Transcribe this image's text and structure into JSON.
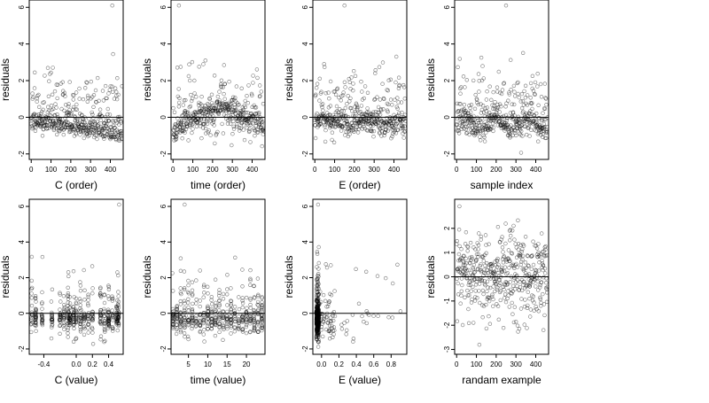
{
  "chart_data": [
    {
      "type": "scatter",
      "xlabel": "C (order)",
      "ylabel": "residuals",
      "xlim": [
        -10,
        465
      ],
      "ylim": [
        -2.3,
        6.4
      ],
      "xticks": [
        0,
        100,
        200,
        300,
        400
      ],
      "xtick_labels": [
        "0",
        "100",
        "200",
        "300",
        "400"
      ],
      "yticks": [
        -2,
        0,
        2,
        4,
        6
      ],
      "ytick_labels": [
        "-2",
        "0",
        "2",
        "4",
        "6"
      ],
      "hline": 0,
      "n_points": 460,
      "pattern": "C_order",
      "seed": 11,
      "max_point": [
        410,
        6.1
      ]
    },
    {
      "type": "scatter",
      "xlabel": "time (order)",
      "ylabel": "residuals",
      "xlim": [
        -10,
        465
      ],
      "ylim": [
        -2.3,
        6.4
      ],
      "xticks": [
        0,
        100,
        200,
        300,
        400
      ],
      "xtick_labels": [
        "0",
        "100",
        "200",
        "300",
        "400"
      ],
      "yticks": [
        -2,
        0,
        2,
        4,
        6
      ],
      "ytick_labels": [
        "-2",
        "0",
        "2",
        "4",
        "6"
      ],
      "hline": 0,
      "n_points": 460,
      "pattern": "time_order",
      "seed": 23,
      "max_point": [
        30,
        6.1
      ]
    },
    {
      "type": "scatter",
      "xlabel": "E (order)",
      "ylabel": "residuals",
      "xlim": [
        -10,
        465
      ],
      "ylim": [
        -2.3,
        6.4
      ],
      "xticks": [
        0,
        100,
        200,
        300,
        400
      ],
      "xtick_labels": [
        "0",
        "100",
        "200",
        "300",
        "400"
      ],
      "yticks": [
        -2,
        0,
        2,
        4,
        6
      ],
      "ytick_labels": [
        "-2",
        "0",
        "2",
        "4",
        "6"
      ],
      "hline": 0,
      "n_points": 460,
      "pattern": "E_order",
      "seed": 37,
      "max_point": [
        150,
        6.1
      ]
    },
    {
      "type": "scatter",
      "xlabel": "sample index",
      "ylabel": "residuals",
      "xlim": [
        -10,
        465
      ],
      "ylim": [
        -2.3,
        6.4
      ],
      "xticks": [
        0,
        100,
        200,
        300,
        400
      ],
      "xtick_labels": [
        "0",
        "100",
        "200",
        "300",
        "400"
      ],
      "yticks": [
        -2,
        0,
        2,
        4,
        6
      ],
      "ytick_labels": [
        "-2",
        "0",
        "2",
        "4",
        "6"
      ],
      "hline": 0,
      "n_points": 460,
      "pattern": "sample_index",
      "seed": 41,
      "max_point": [
        250,
        6.1
      ]
    },
    {
      "type": "scatter",
      "xlabel": "C (value)",
      "ylabel": "residuals",
      "xlim": [
        -0.58,
        0.58
      ],
      "ylim": [
        -2.3,
        6.4
      ],
      "xticks": [
        -0.4,
        0.0,
        0.2,
        0.4
      ],
      "xtick_labels": [
        "-0.4",
        "0.0",
        "0.2",
        "0.4"
      ],
      "yticks": [
        -2,
        0,
        2,
        4,
        6
      ],
      "ytick_labels": [
        "-2",
        "0",
        "2",
        "4",
        "6"
      ],
      "hline": 0,
      "n_points": 460,
      "pattern": "C_value",
      "seed": 53,
      "x_levels": [
        -0.55,
        -0.5,
        -0.42,
        -0.3,
        -0.2,
        -0.15,
        -0.1,
        -0.08,
        -0.03,
        0.0,
        0.05,
        0.1,
        0.15,
        0.2,
        0.3,
        0.35,
        0.4,
        0.45,
        0.5,
        0.52
      ],
      "max_point": [
        0.53,
        6.1
      ]
    },
    {
      "type": "scatter",
      "xlabel": "time (value)",
      "ylabel": "residuals",
      "xlim": [
        0.5,
        24.8
      ],
      "ylim": [
        -2.3,
        6.4
      ],
      "xticks": [
        5,
        10,
        15,
        20
      ],
      "xtick_labels": [
        "5",
        "10",
        "15",
        "20"
      ],
      "yticks": [
        -2,
        0,
        2,
        4,
        6
      ],
      "ytick_labels": [
        "-2",
        "0",
        "2",
        "4",
        "6"
      ],
      "hline": 0,
      "n_points": 460,
      "pattern": "time_value",
      "seed": 67,
      "max_point": [
        4,
        6.1
      ]
    },
    {
      "type": "scatter",
      "xlabel": "E (value)",
      "ylabel": "residuals",
      "xlim": [
        -0.1,
        0.98
      ],
      "ylim": [
        -2.3,
        6.4
      ],
      "xticks": [
        0.0,
        0.2,
        0.4,
        0.6,
        0.8
      ],
      "xtick_labels": [
        "0.0",
        "0.2",
        "0.4",
        "0.6",
        "0.8"
      ],
      "yticks": [
        -2,
        0,
        2,
        4,
        6
      ],
      "ytick_labels": [
        "-2",
        "0",
        "2",
        "4",
        "6"
      ],
      "hline": 0,
      "n_points": 460,
      "pattern": "E_value",
      "seed": 79,
      "max_point": [
        -0.04,
        6.1
      ]
    },
    {
      "type": "scatter",
      "xlabel": "randam example",
      "ylabel": "residuals",
      "xlim": [
        -10,
        465
      ],
      "ylim": [
        -3.2,
        3.2
      ],
      "xticks": [
        0,
        100,
        200,
        300,
        400
      ],
      "xtick_labels": [
        "0",
        "100",
        "200",
        "300",
        "400"
      ],
      "yticks": [
        -3,
        -2,
        -1,
        0,
        1,
        2
      ],
      "ytick_labels": [
        "-3",
        "-2",
        "-1",
        "0",
        "1",
        "2"
      ],
      "hline": 0,
      "n_points": 460,
      "pattern": "random",
      "seed": 97
    }
  ]
}
